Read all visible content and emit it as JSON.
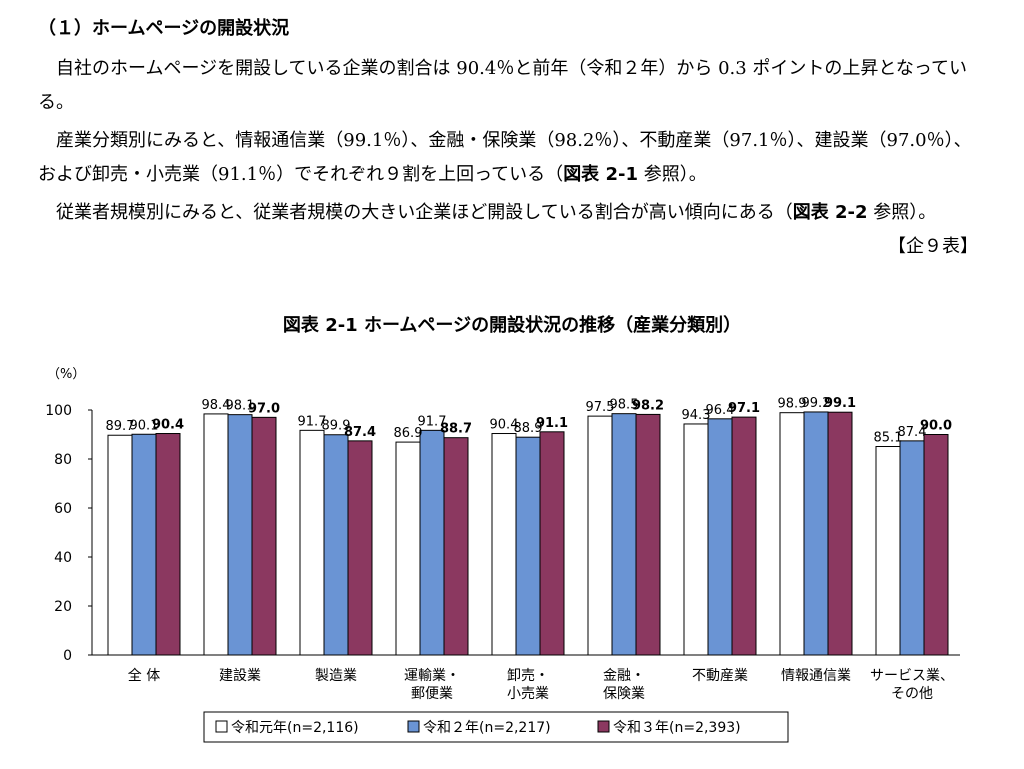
{
  "heading": "（１）ホームページの開設状況",
  "paragraphs": {
    "p1": "自社のホームページを開設している企業の割合は 90.4％と前年（令和２年）から 0.3 ポイントの上昇となっている。",
    "p2_text": "産業分類別にみると、情報通信業（99.1％）、金融・保険業（98.2％）、不動産業（97.1％）、建設業（97.0％）、および卸売・小売業（91.1％）でそれぞれ９割を上回っている（",
    "p2_ref": "図表 2-1",
    "p2_tail": " 参照）。",
    "p3_text": "従業者規模別にみると、従業者規模の大きい企業ほど開設している割合が高い傾向にある（",
    "p3_ref": "図表 2-2",
    "p3_tail": " 参照）。",
    "source_note": "【企９表】"
  },
  "chart_data": {
    "type": "bar",
    "title": "図表 2-1 ホームページの開設状況の推移（産業分類別）",
    "unit_label": "（%）",
    "ylim": [
      0,
      100
    ],
    "yticks": [
      0,
      20,
      40,
      60,
      80,
      100
    ],
    "grid": false,
    "legend_position": "bottom",
    "categories": [
      [
        "全 体"
      ],
      [
        "建設業"
      ],
      [
        "製造業"
      ],
      [
        "運輸業・",
        "郵便業"
      ],
      [
        "卸売・",
        "小売業"
      ],
      [
        "金融・",
        "保険業"
      ],
      [
        "不動産業"
      ],
      [
        "情報通信業"
      ],
      [
        "サービス業、",
        "その他"
      ]
    ],
    "series": [
      {
        "name": "令和元年(n=2,116)",
        "color": "#ffffff",
        "bold_labels": false,
        "values": [
          89.7,
          98.4,
          91.7,
          86.9,
          90.4,
          97.5,
          94.3,
          98.9,
          85.1
        ]
      },
      {
        "name": "令和２年(n=2,217)",
        "color": "#6a94d4",
        "bold_labels": false,
        "values": [
          90.1,
          98.1,
          89.9,
          91.7,
          88.9,
          98.5,
          96.4,
          99.2,
          87.4
        ]
      },
      {
        "name": "令和３年(n=2,393)",
        "color": "#8b3860",
        "bold_labels": true,
        "values": [
          90.4,
          97.0,
          87.4,
          88.7,
          91.1,
          98.2,
          97.1,
          99.1,
          90.0
        ]
      }
    ]
  }
}
